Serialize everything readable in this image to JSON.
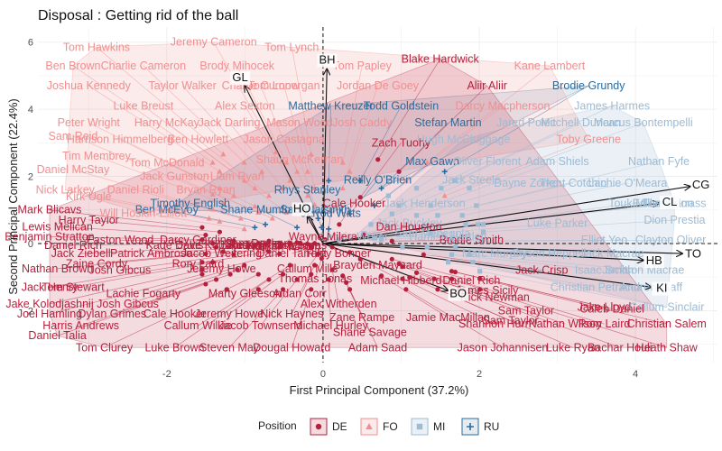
{
  "chart_data": {
    "type": "scatter",
    "title": "Disposal : Getting rid of the ball",
    "xlabel": "First Principal Component (37.2%)",
    "ylabel": "Second Principal Component (22.4%)",
    "xlim": [
      -3.65,
      5.05
    ],
    "ylim": [
      -3.55,
      6.45
    ],
    "xticks": [
      -2,
      0,
      2,
      4
    ],
    "yticks": [
      -2,
      0,
      2,
      4,
      6
    ],
    "grid": true,
    "reference_lines": {
      "x": 0,
      "y": 0
    },
    "legend": {
      "title": "Position",
      "placement": "bottom",
      "entries": [
        {
          "key": "DE",
          "label": "DE",
          "color": "#b5203c"
        },
        {
          "key": "FO",
          "label": "FO",
          "color": "#f08f90"
        },
        {
          "key": "MI",
          "label": "MI",
          "color": "#9ebbd3"
        },
        {
          "key": "RU",
          "label": "RU",
          "color": "#2c6b9c"
        }
      ]
    },
    "vectors": [
      {
        "name": "BH",
        "x": 0.05,
        "y": 5.2
      },
      {
        "name": "GL",
        "x": -1.0,
        "y": 4.7
      },
      {
        "name": "HO",
        "x": -0.2,
        "y": 0.8
      },
      {
        "name": "CG",
        "x": 4.7,
        "y": 1.7
      },
      {
        "name": "CL",
        "x": 4.3,
        "y": 1.2
      },
      {
        "name": "TO",
        "x": 4.6,
        "y": -0.3
      },
      {
        "name": "HB",
        "x": 4.1,
        "y": -0.5
      },
      {
        "name": "KI",
        "x": 4.2,
        "y": -1.3
      },
      {
        "name": "BO",
        "x": 1.6,
        "y": -1.4
      }
    ],
    "points": [
      {
        "name": "Tom Hawkins",
        "x": -2.9,
        "y": 5.85,
        "group": "FO"
      },
      {
        "name": "Jeremy Cameron",
        "x": -1.4,
        "y": 6.0,
        "group": "FO"
      },
      {
        "name": "Tom Lynch",
        "x": -0.4,
        "y": 5.85,
        "group": "FO"
      },
      {
        "name": "Blake Hardwick",
        "x": 1.5,
        "y": 5.5,
        "group": "DE"
      },
      {
        "name": "Kane Lambert",
        "x": 2.9,
        "y": 5.3,
        "group": "FO"
      },
      {
        "name": "Ben Brown",
        "x": -3.2,
        "y": 5.3,
        "group": "FO"
      },
      {
        "name": "Charlie Cameron",
        "x": -2.3,
        "y": 5.3,
        "group": "FO"
      },
      {
        "name": "Brody Mihocek",
        "x": -1.1,
        "y": 5.3,
        "group": "FO"
      },
      {
        "name": "Tom Papley",
        "x": 0.5,
        "y": 5.3,
        "group": "FO"
      },
      {
        "name": "Joshua Kennedy",
        "x": -3.0,
        "y": 4.7,
        "group": "FO"
      },
      {
        "name": "Taylor Walker",
        "x": -1.8,
        "y": 4.7,
        "group": "FO"
      },
      {
        "name": "Charlie Curnow",
        "x": -0.8,
        "y": 4.7,
        "group": "FO"
      },
      {
        "name": "Tom Lonergan",
        "x": -0.5,
        "y": 4.7,
        "group": "FO"
      },
      {
        "name": "Jordan De Goey",
        "x": 0.7,
        "y": 4.7,
        "group": "FO"
      },
      {
        "name": "Aliir Aliir",
        "x": 2.1,
        "y": 4.7,
        "group": "DE"
      },
      {
        "name": "Brodie Grundy",
        "x": 3.4,
        "y": 4.7,
        "group": "RU"
      },
      {
        "name": "Luke Breust",
        "x": -2.3,
        "y": 4.1,
        "group": "FO"
      },
      {
        "name": "Alex Sexton",
        "x": -1.0,
        "y": 4.1,
        "group": "FO"
      },
      {
        "name": "Matthew Kreuzer",
        "x": 0.1,
        "y": 4.1,
        "group": "RU"
      },
      {
        "name": "Todd Goldstein",
        "x": 1.0,
        "y": 4.1,
        "group": "RU"
      },
      {
        "name": "Darcy Macpherson",
        "x": 2.3,
        "y": 4.1,
        "group": "FO"
      },
      {
        "name": "James Harmes",
        "x": 3.7,
        "y": 4.1,
        "group": "MI"
      },
      {
        "name": "Peter Wright",
        "x": -3.0,
        "y": 3.6,
        "group": "FO"
      },
      {
        "name": "Harry McKay",
        "x": -2.0,
        "y": 3.6,
        "group": "FO"
      },
      {
        "name": "Jack Darling",
        "x": -1.2,
        "y": 3.6,
        "group": "FO"
      },
      {
        "name": "Mason Wood",
        "x": -0.3,
        "y": 3.6,
        "group": "FO"
      },
      {
        "name": "Josh Caddy",
        "x": 0.5,
        "y": 3.6,
        "group": "FO"
      },
      {
        "name": "Stefan Martin",
        "x": 1.6,
        "y": 3.6,
        "group": "RU"
      },
      {
        "name": "Jared Polec",
        "x": 2.6,
        "y": 3.6,
        "group": "MI"
      },
      {
        "name": "Mitchell Duncan",
        "x": 3.3,
        "y": 3.6,
        "group": "MI"
      },
      {
        "name": "Marcus Bontempelli",
        "x": 4.1,
        "y": 3.6,
        "group": "MI"
      },
      {
        "name": "Sam Reid",
        "x": -3.2,
        "y": 3.2,
        "group": "FO"
      },
      {
        "name": "Harrison Himmelberg",
        "x": -2.6,
        "y": 3.1,
        "group": "FO"
      },
      {
        "name": "Ben Howlett",
        "x": -1.6,
        "y": 3.1,
        "group": "FO"
      },
      {
        "name": "Jason Castagna",
        "x": -0.5,
        "y": 3.1,
        "group": "FO"
      },
      {
        "name": "Zach Tuohy",
        "x": 1.0,
        "y": 3.0,
        "group": "DE"
      },
      {
        "name": "Hugh McCluggage",
        "x": 1.8,
        "y": 3.1,
        "group": "MI"
      },
      {
        "name": "Toby Greene",
        "x": 3.4,
        "y": 3.1,
        "group": "FO"
      },
      {
        "name": "Tim Membrey",
        "x": -2.9,
        "y": 2.6,
        "group": "FO"
      },
      {
        "name": "Tom McDonald",
        "x": -2.0,
        "y": 2.4,
        "group": "FO"
      },
      {
        "name": "Shaun McKernan",
        "x": -0.3,
        "y": 2.5,
        "group": "FO"
      },
      {
        "name": "Max Gawn",
        "x": 1.4,
        "y": 2.45,
        "group": "RU"
      },
      {
        "name": "Oliver Florent",
        "x": 2.1,
        "y": 2.45,
        "group": "MI"
      },
      {
        "name": "Adam Shiels",
        "x": 3.0,
        "y": 2.45,
        "group": "MI"
      },
      {
        "name": "Nathan Fyfe",
        "x": 4.3,
        "y": 2.45,
        "group": "MI"
      },
      {
        "name": "Daniel McStay",
        "x": -3.2,
        "y": 2.2,
        "group": "FO"
      },
      {
        "name": "Jack Gunston",
        "x": -1.9,
        "y": 2.0,
        "group": "FO"
      },
      {
        "name": "Liam Ryan",
        "x": -1.1,
        "y": 2.0,
        "group": "FO"
      },
      {
        "name": "Reilly O'Brien",
        "x": 0.7,
        "y": 1.9,
        "group": "RU"
      },
      {
        "name": "Jack Steele",
        "x": 1.9,
        "y": 1.9,
        "group": "MI"
      },
      {
        "name": "Dayne Zorko",
        "x": 2.6,
        "y": 1.8,
        "group": "MI"
      },
      {
        "name": "Trent Cotchin",
        "x": 3.2,
        "y": 1.8,
        "group": "MI"
      },
      {
        "name": "Lachie O'Meara",
        "x": 3.9,
        "y": 1.8,
        "group": "MI"
      },
      {
        "name": "Nick Larkey",
        "x": -3.3,
        "y": 1.6,
        "group": "FO"
      },
      {
        "name": "Daniel Rioli",
        "x": -2.4,
        "y": 1.6,
        "group": "FO"
      },
      {
        "name": "Bryan Ryan",
        "x": -1.5,
        "y": 1.6,
        "group": "FO"
      },
      {
        "name": "Rhys Stanley",
        "x": -0.2,
        "y": 1.6,
        "group": "RU"
      },
      {
        "name": "Kirk Ugle",
        "x": -3.0,
        "y": 1.4,
        "group": "FO"
      },
      {
        "name": "Timothy English",
        "x": -1.7,
        "y": 1.2,
        "group": "RU"
      },
      {
        "name": "Cale Hooker",
        "x": 0.4,
        "y": 1.2,
        "group": "DE"
      },
      {
        "name": "Jack Henderson",
        "x": 1.3,
        "y": 1.2,
        "group": "MI"
      },
      {
        "name": "Jack Buckley",
        "x": 1.1,
        "y": 0.6,
        "group": "MI"
      },
      {
        "name": "Touk Miller",
        "x": 4.0,
        "y": 1.2,
        "group": "MI"
      },
      {
        "name": "Ed Langdon",
        "x": 4.35,
        "y": 1.2,
        "group": "MI"
      },
      {
        "name": "Tom Barrass",
        "x": 4.5,
        "y": 1.2,
        "group": "MI"
      },
      {
        "name": "Mark Blicavs",
        "x": -3.5,
        "y": 1.0,
        "group": "DE"
      },
      {
        "name": "Ben McEvoy",
        "x": -2.0,
        "y": 1.0,
        "group": "RU"
      },
      {
        "name": "Shane Mumford",
        "x": -0.8,
        "y": 1.0,
        "group": "RU"
      },
      {
        "name": "Sam Naismith",
        "x": -0.1,
        "y": 1.0,
        "group": "RU"
      },
      {
        "name": "Jarrod Witts",
        "x": 0.1,
        "y": 0.9,
        "group": "RU"
      },
      {
        "name": "Harry Taylor",
        "x": -3.0,
        "y": 0.7,
        "group": "DE"
      },
      {
        "name": "Will Hoskin-Elliott",
        "x": -2.3,
        "y": 0.9,
        "group": "FO"
      },
      {
        "name": "Luke Parker",
        "x": 3.0,
        "y": 0.6,
        "group": "MI"
      },
      {
        "name": "Dion Prestia",
        "x": 4.5,
        "y": 0.7,
        "group": "MI"
      },
      {
        "name": "Lewis Melican",
        "x": -3.4,
        "y": 0.5,
        "group": "DE"
      },
      {
        "name": "Dan Houston",
        "x": 1.1,
        "y": 0.5,
        "group": "DE"
      },
      {
        "name": "Sam Menegola",
        "x": 1.4,
        "y": 0.3,
        "group": "MI"
      },
      {
        "name": "Benjamin Stratton",
        "x": -3.5,
        "y": 0.2,
        "group": "DE"
      },
      {
        "name": "Lachie Weller",
        "x": 0.4,
        "y": 0.2,
        "group": "MI"
      },
      {
        "name": "Wayne Milera",
        "x": 0.0,
        "y": 0.2,
        "group": "DE"
      },
      {
        "name": "Brodie Smith",
        "x": 1.9,
        "y": 0.1,
        "group": "DE"
      },
      {
        "name": "Hamish Hartlett",
        "x": 1.6,
        "y": 0.2,
        "group": "MI"
      },
      {
        "name": "Elliot Yeo",
        "x": 3.6,
        "y": 0.1,
        "group": "MI"
      },
      {
        "name": "Clayton Oliver",
        "x": 4.45,
        "y": 0.1,
        "group": "MI"
      },
      {
        "name": "Easton Wood",
        "x": -2.6,
        "y": 0.1,
        "group": "DE"
      },
      {
        "name": "Darcy Gardiner",
        "x": -1.6,
        "y": 0.1,
        "group": "DE"
      },
      {
        "name": "Jake Kolodjashnij",
        "x": -1.3,
        "y": -0.05,
        "group": "DE"
      },
      {
        "name": "Sam Docherty",
        "x": -0.8,
        "y": 0.0,
        "group": "DE"
      },
      {
        "name": "Nathan Wilson",
        "x": -0.5,
        "y": -0.1,
        "group": "DE"
      },
      {
        "name": "Daniel Rich",
        "x": -3.2,
        "y": -0.05,
        "group": "DE"
      },
      {
        "name": "Kade Davis",
        "x": -1.9,
        "y": -0.05,
        "group": "DE"
      },
      {
        "name": "Jake Kelly",
        "x": -1.0,
        "y": -0.05,
        "group": "DE"
      },
      {
        "name": "Jordan Kallsteen",
        "x": -0.7,
        "y": -0.05,
        "group": "DE"
      },
      {
        "name": "Tom Jonas",
        "x": -0.3,
        "y": -0.05,
        "group": "DE"
      },
      {
        "name": "Marc Murphy",
        "x": 2.2,
        "y": -0.3,
        "group": "MI"
      },
      {
        "name": "Dyson Heppell",
        "x": 2.9,
        "y": -0.3,
        "group": "MI"
      },
      {
        "name": "Jack Macrae",
        "x": 3.7,
        "y": -0.3,
        "group": "MI"
      },
      {
        "name": "Jack Ziebell",
        "x": -3.1,
        "y": -0.3,
        "group": "DE"
      },
      {
        "name": "Patrick Ambrose",
        "x": -2.2,
        "y": -0.3,
        "group": "DE"
      },
      {
        "name": "Jacob Weitering",
        "x": -1.3,
        "y": -0.3,
        "group": "DE"
      },
      {
        "name": "Daniel Tarrant",
        "x": -0.4,
        "y": -0.3,
        "group": "DE"
      },
      {
        "name": "Riley Bonner",
        "x": 0.2,
        "y": -0.3,
        "group": "DE"
      },
      {
        "name": "Zaine Cordy",
        "x": -2.9,
        "y": -0.6,
        "group": "DE"
      },
      {
        "name": "Rory Laird",
        "x": -1.6,
        "y": -0.6,
        "group": "DE"
      },
      {
        "name": "Jack Crisp",
        "x": 2.8,
        "y": -0.8,
        "group": "DE"
      },
      {
        "name": "Isaac Smith",
        "x": 3.6,
        "y": -0.8,
        "group": "MI"
      },
      {
        "name": "Jackson Macrae",
        "x": 4.1,
        "y": -0.8,
        "group": "MI"
      },
      {
        "name": "Nathan Brown",
        "x": -3.4,
        "y": -0.75,
        "group": "DE"
      },
      {
        "name": "Jeremy Howe",
        "x": -1.3,
        "y": -0.75,
        "group": "DE"
      },
      {
        "name": "Callum Mills",
        "x": -0.2,
        "y": -0.75,
        "group": "DE"
      },
      {
        "name": "Brayden Maynard",
        "x": 0.7,
        "y": -0.65,
        "group": "DE"
      },
      {
        "name": "Josh Gibcus",
        "x": -2.6,
        "y": -0.8,
        "group": "DE"
      },
      {
        "name": "Thomas Jonas",
        "x": -0.1,
        "y": -1.05,
        "group": "DE"
      },
      {
        "name": "Michael Hibberd",
        "x": 1.0,
        "y": -1.1,
        "group": "DE"
      },
      {
        "name": "Daniel Rich",
        "x": 1.9,
        "y": -1.1,
        "group": "DE"
      },
      {
        "name": "Christian Petracca",
        "x": 3.5,
        "y": -1.3,
        "group": "MI"
      },
      {
        "name": "Andrew Gaff",
        "x": 4.2,
        "y": -1.3,
        "group": "MI"
      },
      {
        "name": "Jack Henry",
        "x": -3.5,
        "y": -1.3,
        "group": "DE"
      },
      {
        "name": "Tom Stewart",
        "x": -3.2,
        "y": -1.3,
        "group": "DE"
      },
      {
        "name": "Lachie Fogarty",
        "x": -2.3,
        "y": -1.5,
        "group": "DE"
      },
      {
        "name": "Marty Gleeson",
        "x": -1.0,
        "y": -1.5,
        "group": "DE"
      },
      {
        "name": "Aidan Corr",
        "x": -0.3,
        "y": -1.5,
        "group": "DE"
      },
      {
        "name": "James Sicily",
        "x": 2.1,
        "y": -1.4,
        "group": "DE"
      },
      {
        "name": "Nick Newman",
        "x": 2.2,
        "y": -1.6,
        "group": "DE"
      },
      {
        "name": "Jake Kolodjashnij",
        "x": -3.5,
        "y": -1.8,
        "group": "DE"
      },
      {
        "name": "Josh Gibcus",
        "x": -2.5,
        "y": -1.8,
        "group": "DE"
      },
      {
        "name": "Alex Witherden",
        "x": 0.2,
        "y": -1.8,
        "group": "DE"
      },
      {
        "name": "Jake Lloyd",
        "x": 3.6,
        "y": -1.9,
        "group": "DE"
      },
      {
        "name": "Callum Sinclair",
        "x": 4.4,
        "y": -1.9,
        "group": "MI"
      },
      {
        "name": "Joel Hamling",
        "x": -3.5,
        "y": -2.1,
        "group": "DE"
      },
      {
        "name": "Dylan Grimes",
        "x": -2.7,
        "y": -2.1,
        "group": "DE"
      },
      {
        "name": "Cale Hooker",
        "x": -1.9,
        "y": -2.1,
        "group": "DE"
      },
      {
        "name": "Jeremy Howe",
        "x": -1.2,
        "y": -2.1,
        "group": "DE"
      },
      {
        "name": "Nick Haynes",
        "x": -0.4,
        "y": -2.1,
        "group": "DE"
      },
      {
        "name": "Zane Rampe",
        "x": 0.5,
        "y": -2.2,
        "group": "DE"
      },
      {
        "name": "Jamie MacMillan",
        "x": 1.6,
        "y": -2.2,
        "group": "DE"
      },
      {
        "name": "Sam Taylor",
        "x": 2.6,
        "y": -2.0,
        "group": "DE"
      },
      {
        "name": "Caleb Daniel",
        "x": 3.7,
        "y": -1.95,
        "group": "DE"
      },
      {
        "name": "Harris Andrews",
        "x": -3.1,
        "y": -2.45,
        "group": "DE"
      },
      {
        "name": "Callum Wilkie",
        "x": -1.6,
        "y": -2.45,
        "group": "DE"
      },
      {
        "name": "Jacob Townsend",
        "x": -0.8,
        "y": -2.45,
        "group": "DE"
      },
      {
        "name": "Michael Hurley",
        "x": 0.1,
        "y": -2.45,
        "group": "DE"
      },
      {
        "name": "Shannon Hurn",
        "x": 2.2,
        "y": -2.4,
        "group": "DE"
      },
      {
        "name": "Nathan Wilson",
        "x": 3.1,
        "y": -2.4,
        "group": "DE"
      },
      {
        "name": "Rory Laird",
        "x": 3.6,
        "y": -2.4,
        "group": "DE"
      },
      {
        "name": "Christian Salem",
        "x": 4.4,
        "y": -2.4,
        "group": "DE"
      },
      {
        "name": "Daniel Talia",
        "x": -3.4,
        "y": -2.75,
        "group": "DE"
      },
      {
        "name": "Shane Savage",
        "x": 0.6,
        "y": -2.65,
        "group": "DE"
      },
      {
        "name": "Tom Clurey",
        "x": -2.8,
        "y": -3.1,
        "group": "DE"
      },
      {
        "name": "Luke Brown",
        "x": -1.9,
        "y": -3.1,
        "group": "DE"
      },
      {
        "name": "Steven May",
        "x": -1.2,
        "y": -3.1,
        "group": "DE"
      },
      {
        "name": "Dougal Howard",
        "x": -0.4,
        "y": -3.1,
        "group": "DE"
      },
      {
        "name": "Adam Saad",
        "x": 0.7,
        "y": -3.1,
        "group": "DE"
      },
      {
        "name": "Jason Johannisen",
        "x": 2.3,
        "y": -3.1,
        "group": "DE"
      },
      {
        "name": "Luke Ryan",
        "x": 3.2,
        "y": -3.1,
        "group": "DE"
      },
      {
        "name": "Bachar Houli",
        "x": 3.8,
        "y": -3.1,
        "group": "DE"
      },
      {
        "name": "Heath Shaw",
        "x": 4.4,
        "y": -3.1,
        "group": "DE"
      },
      {
        "name": "Sam Taylor",
        "x": 2.4,
        "y": -2.3,
        "group": "DE"
      }
    ]
  }
}
